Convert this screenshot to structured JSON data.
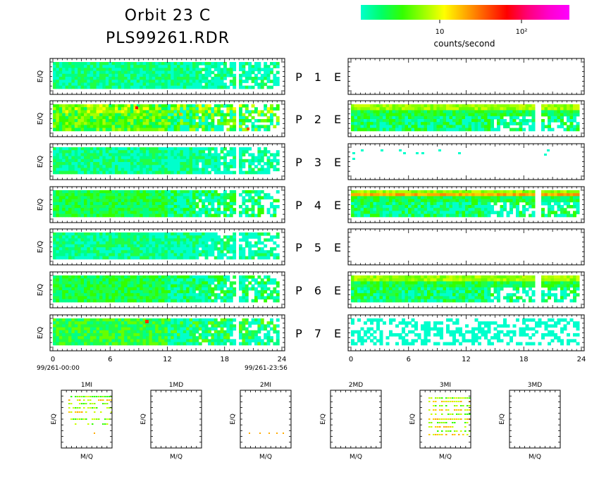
{
  "header": {
    "title_line1": "Orbit 23 C",
    "title_line2": "PLS99261.RDR"
  },
  "colorbar": {
    "label": "counts/second",
    "tick_labels": [
      "10",
      "10²"
    ],
    "colors": [
      "#00ffcc",
      "#00ff66",
      "#33ff00",
      "#99ff00",
      "#ffff00",
      "#ffaa00",
      "#ff5500",
      "#ff0000",
      "#ff0077",
      "#ff00cc",
      "#ff00ff"
    ]
  },
  "panels": {
    "ylabel": "E/Q",
    "p_label": "P",
    "e_label": "E",
    "rows": [
      "1",
      "2",
      "3",
      "4",
      "5",
      "6",
      "7"
    ]
  },
  "axis": {
    "ticks": [
      "0",
      "6",
      "12",
      "18",
      "24"
    ],
    "start_label": "99/261-00:00",
    "end_label": "99/261-23:56"
  },
  "mass_panels": {
    "titles": [
      "1MI",
      "1MD",
      "2MI",
      "2MD",
      "3MI",
      "3MD"
    ],
    "xlabel": "M/Q",
    "ylabel": "E/Q"
  },
  "chart_data": {
    "type": "heatmap",
    "x_range_hours": [
      0,
      24
    ],
    "colorscale": "counts/second (log)",
    "panels_left_P": [
      "P 1",
      "P 2",
      "P 3",
      "P 4",
      "P 5",
      "P 6",
      "P 7"
    ],
    "panels_right_E": [
      "E 1",
      "E 2",
      "E 3",
      "E 4",
      "E 5",
      "E 6",
      "E 7"
    ],
    "mass_spectra": [
      "1MI",
      "1MD",
      "2MI",
      "2MD",
      "3MI",
      "3MD"
    ]
  }
}
